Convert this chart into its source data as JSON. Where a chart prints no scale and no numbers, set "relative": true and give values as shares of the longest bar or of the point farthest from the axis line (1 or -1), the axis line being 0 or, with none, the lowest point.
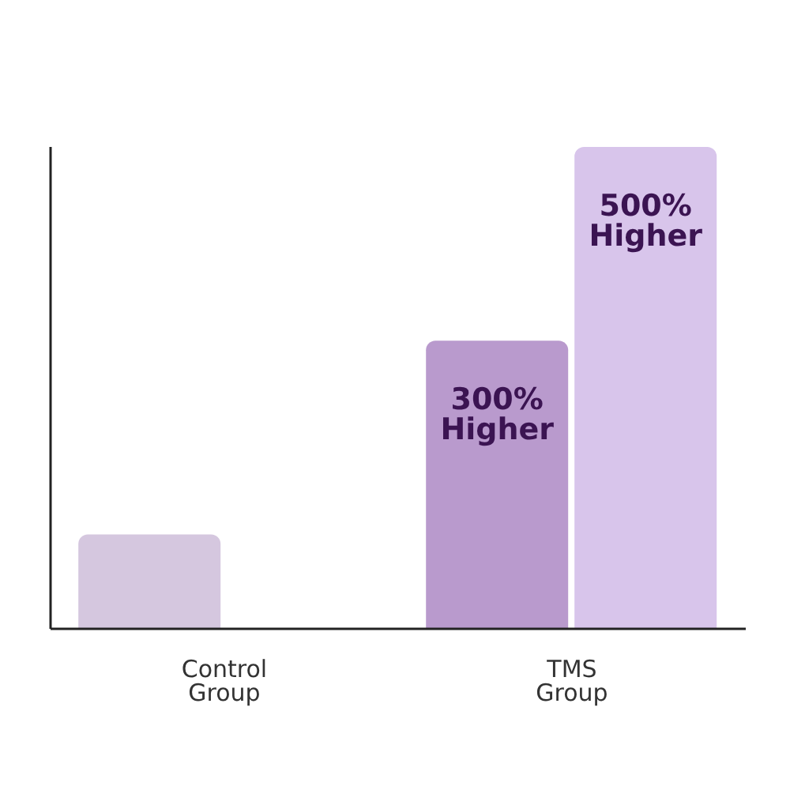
{
  "chart_data": {
    "type": "bar",
    "relative": true,
    "categories": [
      "Control Group",
      "TMS Group"
    ],
    "series": [
      {
        "colors": [
          "#d5c7df",
          "#b99acd"
        ],
        "values": [
          0.196,
          0.598
        ]
      },
      {
        "colors": [
          "#d8c5eb",
          "#d8c5eb"
        ],
        "values": [
          null,
          1
        ]
      }
    ],
    "annotations": [
      "300% Higher",
      "500% Higher"
    ]
  }
}
